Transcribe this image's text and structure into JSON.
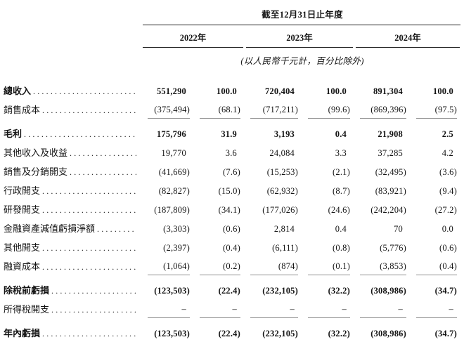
{
  "header": {
    "period_title": "截至12月31日止年度",
    "years": [
      "2022年",
      "2023年",
      "2024年"
    ],
    "unit_note": "(以人民幣千元計，百分比除外)"
  },
  "table": {
    "rows": [
      {
        "label": "總收入",
        "bold": true,
        "subtotal": false,
        "rule_below": false,
        "values": [
          "551,290",
          "100.0",
          "720,404",
          "100.0",
          "891,304",
          "100.0"
        ]
      },
      {
        "label": "銷售成本",
        "bold": false,
        "subtotal": false,
        "rule_below": true,
        "values": [
          "(375,494)",
          "(68.1)",
          "(717,211)",
          "(99.6)",
          "(869,396)",
          "(97.5)"
        ]
      },
      {
        "label": "毛利",
        "bold": true,
        "subtotal": true,
        "rule_below": false,
        "values": [
          "175,796",
          "31.9",
          "3,193",
          "0.4",
          "21,908",
          "2.5"
        ]
      },
      {
        "label": "其他收入及收益",
        "bold": false,
        "subtotal": false,
        "rule_below": false,
        "values": [
          "19,770",
          "3.6",
          "24,084",
          "3.3",
          "37,285",
          "4.2"
        ]
      },
      {
        "label": "銷售及分銷開支",
        "bold": false,
        "subtotal": false,
        "rule_below": false,
        "values": [
          "(41,669)",
          "(7.6)",
          "(15,253)",
          "(2.1)",
          "(32,495)",
          "(3.6)"
        ]
      },
      {
        "label": "行政開支",
        "bold": false,
        "subtotal": false,
        "rule_below": false,
        "values": [
          "(82,827)",
          "(15.0)",
          "(62,932)",
          "(8.7)",
          "(83,921)",
          "(9.4)"
        ]
      },
      {
        "label": "研發開支",
        "bold": false,
        "subtotal": false,
        "rule_below": false,
        "values": [
          "(187,809)",
          "(34.1)",
          "(177,026)",
          "(24.6)",
          "(242,204)",
          "(27.2)"
        ]
      },
      {
        "label": "金融資產減值虧損淨額",
        "bold": false,
        "subtotal": false,
        "rule_below": false,
        "values": [
          "(3,303)",
          "(0.6)",
          "2,814",
          "0.4",
          "70",
          "0.0"
        ]
      },
      {
        "label": "其他開支",
        "bold": false,
        "subtotal": false,
        "rule_below": false,
        "values": [
          "(2,397)",
          "(0.4)",
          "(6,111)",
          "(0.8)",
          "(5,776)",
          "(0.6)"
        ]
      },
      {
        "label": "融資成本",
        "bold": false,
        "subtotal": false,
        "rule_below": true,
        "values": [
          "(1,064)",
          "(0.2)",
          "(874)",
          "(0.1)",
          "(3,853)",
          "(0.4)"
        ]
      },
      {
        "label": "除稅前虧損",
        "bold": true,
        "subtotal": true,
        "rule_below": false,
        "values": [
          "(123,503)",
          "(22.4)",
          "(232,105)",
          "(32.2)",
          "(308,986)",
          "(34.7)"
        ]
      },
      {
        "label": "所得稅開支",
        "bold": false,
        "subtotal": false,
        "rule_below": true,
        "values": [
          "–",
          "–",
          "–",
          "–",
          "–",
          "–"
        ]
      },
      {
        "label": "年內虧損",
        "bold": true,
        "subtotal": true,
        "rule_below": false,
        "values": [
          "(123,503)",
          "(22.4)",
          "(232,105)",
          "(32.2)",
          "(308,986)",
          "(34.7)"
        ]
      }
    ]
  }
}
